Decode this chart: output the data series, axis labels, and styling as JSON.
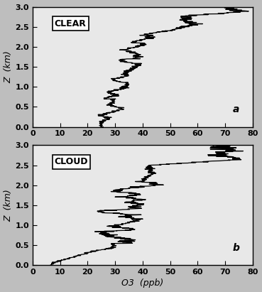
{
  "title_a": "CLEAR",
  "title_b": "CLOUD",
  "label_a": "a",
  "label_b": "b",
  "xlabel": "O3  (ppb)",
  "ylabel": "Z  (km)",
  "xlim": [
    0,
    80
  ],
  "ylim": [
    0,
    3.0
  ],
  "xticks": [
    0,
    10,
    20,
    30,
    40,
    50,
    60,
    70,
    80
  ],
  "yticks": [
    0.0,
    0.5,
    1.0,
    1.5,
    2.0,
    2.5,
    3.0
  ],
  "line_color": "#000000",
  "line_width": 0.9,
  "fig_facecolor": "#bebebe",
  "axes_facecolor": "#e8e8e8",
  "tick_labelsize": 8,
  "label_fontsize": 9,
  "tag_fontsize": 10
}
